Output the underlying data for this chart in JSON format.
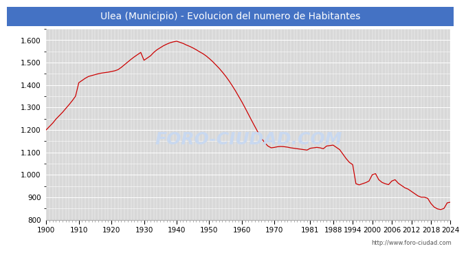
{
  "title": "Ulea (Municipio) - Evolucion del numero de Habitantes",
  "title_bg_color": "#4472c4",
  "title_text_color": "#ffffff",
  "plot_bg_color": "#d8d8d8",
  "figure_bg_color": "#ffffff",
  "line_color": "#cc0000",
  "watermark_text": "FORO-CIUDAD.COM",
  "watermark_color": "#c8d8f0",
  "url_text": "http://www.foro-ciudad.com",
  "ylim": [
    800,
    1650
  ],
  "yticks": [
    800,
    900,
    1000,
    1100,
    1200,
    1300,
    1400,
    1500,
    1600
  ],
  "years": [
    1900,
    1901,
    1902,
    1903,
    1904,
    1905,
    1906,
    1907,
    1908,
    1909,
    1910,
    1911,
    1912,
    1913,
    1914,
    1915,
    1916,
    1917,
    1918,
    1919,
    1920,
    1921,
    1922,
    1923,
    1924,
    1925,
    1926,
    1927,
    1928,
    1929,
    1930,
    1931,
    1932,
    1933,
    1934,
    1935,
    1936,
    1937,
    1938,
    1939,
    1940,
    1941,
    1942,
    1943,
    1944,
    1945,
    1946,
    1947,
    1948,
    1949,
    1950,
    1951,
    1952,
    1953,
    1954,
    1955,
    1956,
    1957,
    1958,
    1959,
    1960,
    1961,
    1962,
    1963,
    1964,
    1965,
    1966,
    1967,
    1968,
    1969,
    1970,
    1971,
    1972,
    1973,
    1974,
    1975,
    1976,
    1977,
    1978,
    1979,
    1980,
    1981,
    1982,
    1983,
    1984,
    1985,
    1986,
    1987,
    1988,
    1989,
    1990,
    1991,
    1992,
    1993,
    1994,
    1995,
    1996,
    1997,
    1998,
    1999,
    2000,
    2001,
    2002,
    2003,
    2004,
    2005,
    2006,
    2007,
    2008,
    2009,
    2010,
    2011,
    2012,
    2013,
    2014,
    2015,
    2016,
    2017,
    2018,
    2019,
    2020,
    2021,
    2022,
    2023,
    2024
  ],
  "population": [
    1200,
    1215,
    1230,
    1248,
    1263,
    1278,
    1295,
    1312,
    1330,
    1350,
    1410,
    1420,
    1430,
    1438,
    1442,
    1446,
    1450,
    1453,
    1455,
    1457,
    1460,
    1463,
    1468,
    1478,
    1490,
    1502,
    1514,
    1525,
    1535,
    1545,
    1510,
    1520,
    1530,
    1545,
    1557,
    1566,
    1575,
    1582,
    1588,
    1592,
    1595,
    1590,
    1585,
    1578,
    1572,
    1565,
    1557,
    1548,
    1540,
    1530,
    1518,
    1505,
    1490,
    1475,
    1458,
    1440,
    1420,
    1398,
    1375,
    1350,
    1325,
    1298,
    1270,
    1242,
    1215,
    1188,
    1163,
    1143,
    1128,
    1120,
    1122,
    1125,
    1126,
    1125,
    1123,
    1120,
    1118,
    1116,
    1114,
    1112,
    1110,
    1118,
    1120,
    1122,
    1120,
    1116,
    1128,
    1130,
    1132,
    1122,
    1112,
    1092,
    1072,
    1055,
    1045,
    960,
    955,
    960,
    965,
    972,
    1000,
    1005,
    978,
    966,
    960,
    956,
    972,
    978,
    962,
    952,
    942,
    936,
    926,
    916,
    906,
    900,
    900,
    895,
    872,
    856,
    848,
    845,
    850,
    875,
    878
  ],
  "xticks": [
    1900,
    1910,
    1920,
    1930,
    1940,
    1950,
    1960,
    1970,
    1981,
    1988,
    1994,
    2000,
    2006,
    2012,
    2018,
    2024
  ],
  "title_fontsize": 10,
  "tick_fontsize": 7.5
}
